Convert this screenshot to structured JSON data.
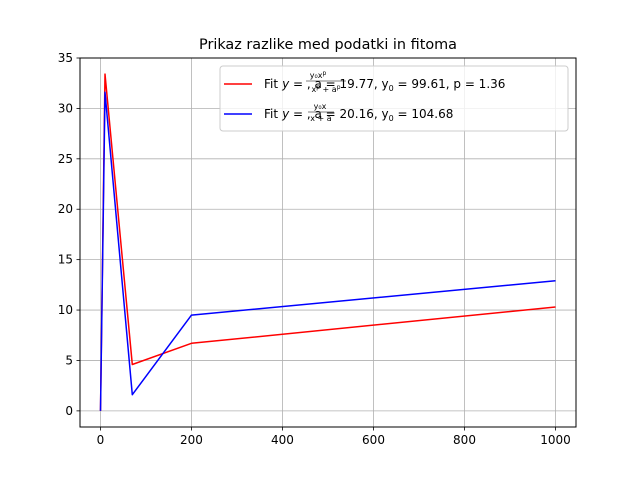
{
  "chart_data": {
    "type": "line",
    "title": "Prikaz razlike med podatki in fitoma",
    "xlabel": "",
    "ylabel": "",
    "xlim": [
      -45,
      1045
    ],
    "ylim": [
      -1.6,
      35
    ],
    "xticks": [
      0,
      200,
      400,
      600,
      800,
      1000
    ],
    "yticks": [
      0,
      5,
      10,
      15,
      20,
      25,
      30,
      35
    ],
    "grid": true,
    "legend_position": "top-right",
    "series": [
      {
        "name": "Fit y = y0·x^p/(x^p + a^p), a = 19.77, y0 = 99.61, p = 1.36",
        "color": "#ff0000",
        "x": [
          0,
          10,
          70,
          200,
          1000
        ],
        "y": [
          0,
          33.4,
          4.6,
          6.7,
          10.3
        ]
      },
      {
        "name": "Fit y = y0·x/(x + a), a = 20.16, y0 = 104.68",
        "color": "#0000ff",
        "x": [
          0,
          10,
          70,
          200,
          1000
        ],
        "y": [
          0,
          31.6,
          1.6,
          9.5,
          12.9
        ]
      }
    ],
    "legend": {
      "entry1": {
        "prefix": "Fit",
        "params": ", a = 19.77, y",
        "sub": "0",
        "tail": " = 99.61, p = 1.36"
      },
      "entry2": {
        "prefix": "Fit",
        "params": ", a = 20.16, y",
        "sub": "0",
        "tail": " = 104.68"
      }
    }
  }
}
